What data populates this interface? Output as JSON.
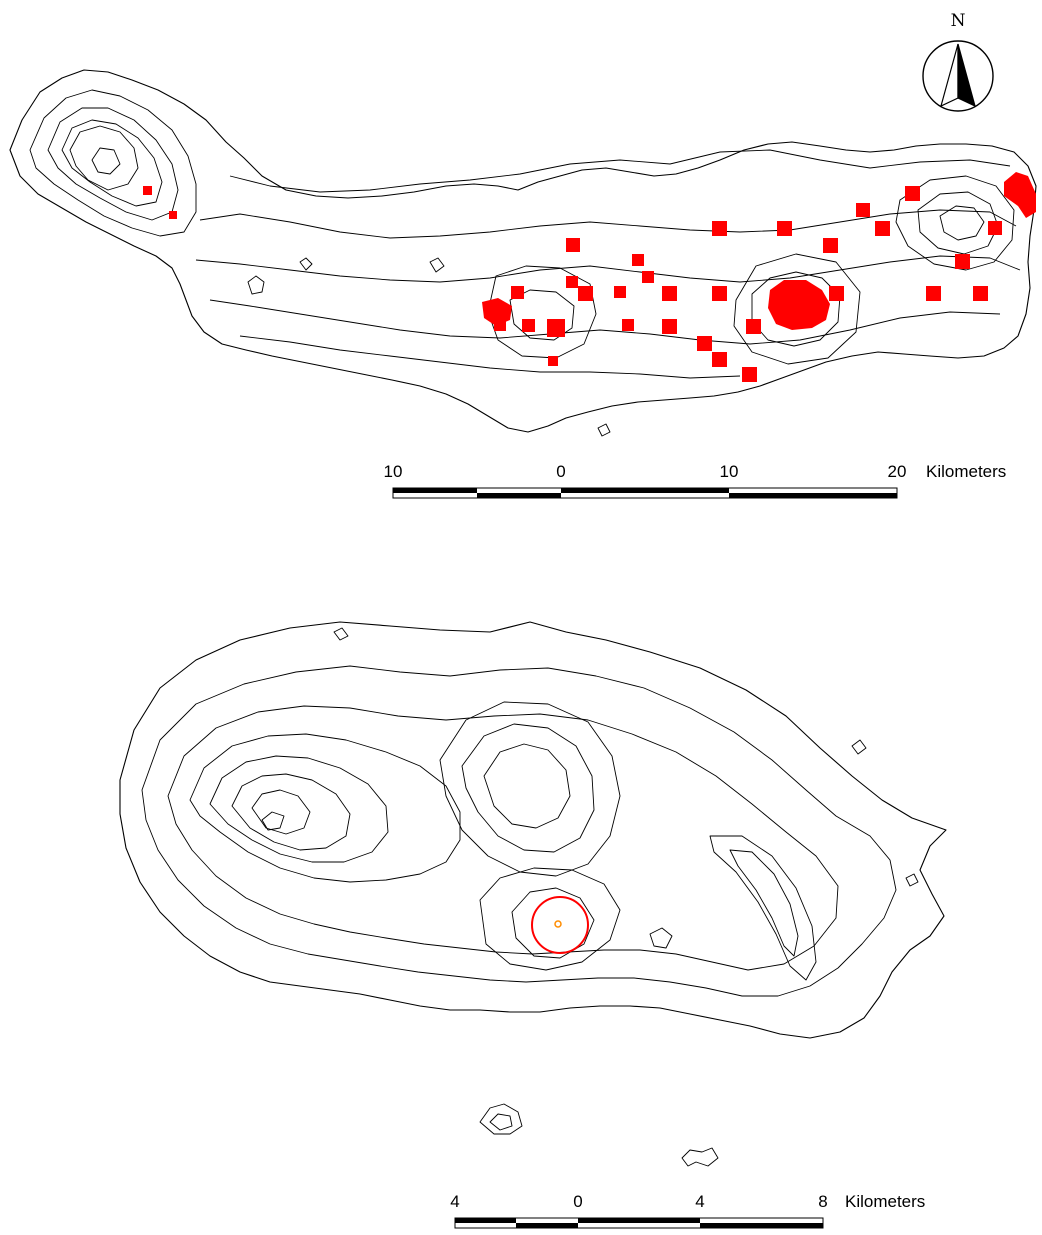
{
  "north_arrow": {
    "label": "N"
  },
  "map1": {
    "description_layers": [
      "contours",
      "red-cells"
    ],
    "highlight_color": "#ff0000",
    "scale_bar": {
      "ticks": [
        "10",
        "0",
        "10",
        "20"
      ],
      "unit": "Kilometers"
    }
  },
  "map2": {
    "highlight_color": "#ff0000",
    "marker_color": "#ff8c00",
    "scale_bar": {
      "ticks": [
        "4",
        "0",
        "4",
        "8"
      ],
      "unit": "Kilometers"
    }
  }
}
